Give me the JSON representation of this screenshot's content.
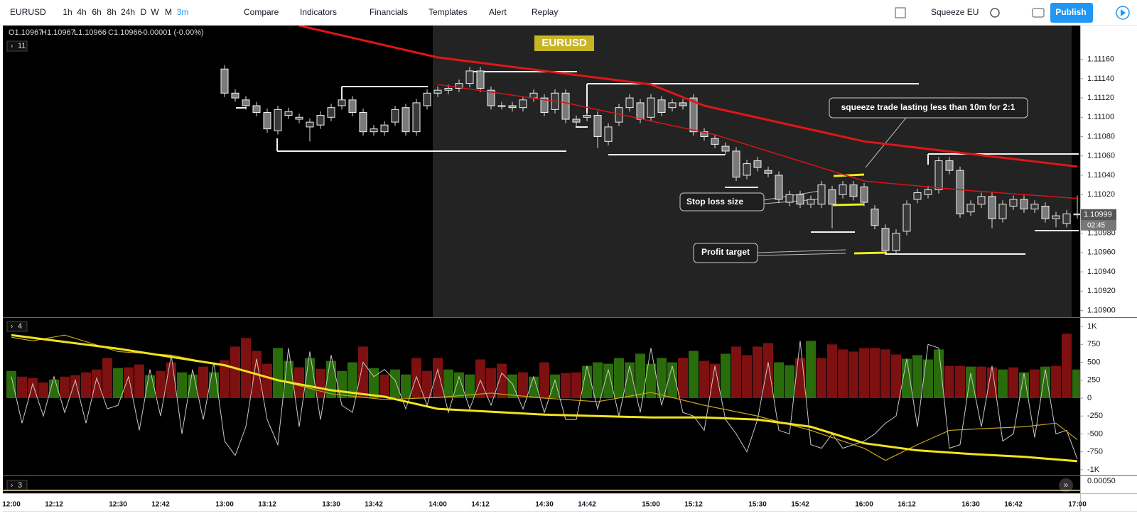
{
  "toolbar": {
    "symbol": "EURUSD",
    "intervals": [
      "1h",
      "4h",
      "6h",
      "8h",
      "24h",
      "D",
      "W",
      "M",
      "3m"
    ],
    "buttons": [
      "Compare",
      "Indicators",
      "Financials",
      "Templates",
      "Alert",
      "Replay"
    ],
    "layout": "Squeeze EU",
    "publish": "Publish"
  },
  "legend": {
    "ohlc": [
      "O1.10967",
      "H1.10967",
      "L1.10966",
      "C1.10966",
      "-0.00001 (-0.00%)"
    ]
  },
  "main_pane": {
    "label": "11",
    "symbol_tag": "EURUSD",
    "annotations": [
      "squeeze trade lasting less than 10m for 2:1",
      "Stop loss size",
      "Profit target"
    ],
    "ylim": [
      1.10893,
      1.11195
    ],
    "yticks": [
      {
        "value": 1.1116,
        "label": "1.11160"
      },
      {
        "value": 1.1114,
        "label": "1.11140"
      },
      {
        "value": 1.1112,
        "label": "1.11120"
      },
      {
        "value": 1.111,
        "label": "1.11100"
      },
      {
        "value": 1.1108,
        "label": "1.11080"
      },
      {
        "value": 1.1106,
        "label": "1.11060"
      },
      {
        "value": 1.1104,
        "label": "1.11040"
      },
      {
        "value": 1.1102,
        "label": "1.11020"
      },
      {
        "value": 1.11,
        "label": "1.11000"
      },
      {
        "value": 1.1098,
        "label": "1.10980"
      },
      {
        "value": 1.1096,
        "label": "1.10960"
      },
      {
        "value": 1.1094,
        "label": "1.10940"
      },
      {
        "value": 1.1092,
        "label": "1.10920"
      },
      {
        "value": 1.109,
        "label": "1.10900"
      }
    ],
    "candles": {
      "up_color": "#f0f0f0",
      "down_color": "#7a7a7a",
      "open": [
        1.1115,
        1.11125,
        1.11118,
        1.11112,
        1.11105,
        1.11086,
        1.11102,
        1.11098,
        1.1109,
        1.11092,
        1.111,
        1.11112,
        1.11118,
        1.11105,
        1.11085,
        1.11085,
        1.11095,
        1.1111,
        1.11085,
        1.11112,
        1.11125,
        1.11128,
        1.1113,
        1.11135,
        1.11148,
        1.11128,
        1.11112,
        1.11112,
        1.1111,
        1.1112,
        1.1112,
        1.11108,
        1.11125,
        1.11098,
        1.111,
        1.11102,
        1.11075,
        1.11095,
        1.1111,
        1.11115,
        1.111,
        1.11118,
        1.1111,
        1.11115,
        1.1112,
        1.11085,
        1.11078,
        1.1107,
        1.11065,
        1.1104,
        1.11055,
        1.11045,
        1.1104,
        1.11012,
        1.1102,
        1.1101,
        1.1101,
        1.11025,
        1.1102,
        1.1103,
        1.11028,
        1.11005,
        1.10985,
        1.10962,
        1.10982,
        1.11015,
        1.1102,
        1.11025,
        1.11055,
        1.11045,
        1.11002,
        1.1101,
        1.11018,
        1.10995,
        1.11008,
        1.11015,
        1.11005,
        1.11008,
        1.10995,
        1.1099,
        1.11
      ],
      "high": [
        1.11154,
        1.11129,
        1.11122,
        1.11116,
        1.11109,
        1.11112,
        1.1111,
        1.11104,
        1.11099,
        1.11106,
        1.11114,
        1.11132,
        1.11122,
        1.11109,
        1.11092,
        1.11096,
        1.11112,
        1.11114,
        1.11119,
        1.11129,
        1.11132,
        1.11134,
        1.11139,
        1.11152,
        1.11152,
        1.11132,
        1.11116,
        1.11116,
        1.11122,
        1.11129,
        1.11124,
        1.11129,
        1.11129,
        1.11102,
        1.11106,
        1.11106,
        1.11094,
        1.11114,
        1.11124,
        1.11119,
        1.11124,
        1.11122,
        1.11119,
        1.11119,
        1.11124,
        1.11089,
        1.11082,
        1.11074,
        1.11069,
        1.11056,
        1.11059,
        1.11049,
        1.11044,
        1.11024,
        1.11024,
        1.11019,
        1.11034,
        1.11029,
        1.11034,
        1.11034,
        1.11032,
        1.11009,
        1.10989,
        1.10984,
        1.11014,
        1.11026,
        1.11029,
        1.11059,
        1.11059,
        1.11049,
        1.11014,
        1.11022,
        1.11022,
        1.11014,
        1.11019,
        1.11019,
        1.11014,
        1.11012,
        1.11002,
        1.11004,
        1.11019
      ],
      "low": [
        1.11121,
        1.11116,
        1.11108,
        1.11101,
        1.11084,
        1.11082,
        1.11098,
        1.11094,
        1.11075,
        1.11088,
        1.11096,
        1.11108,
        1.11101,
        1.11081,
        1.11081,
        1.11081,
        1.11091,
        1.11081,
        1.11081,
        1.11108,
        1.11121,
        1.11124,
        1.11126,
        1.11131,
        1.11126,
        1.11108,
        1.11108,
        1.11106,
        1.11106,
        1.11116,
        1.11101,
        1.11104,
        1.11094,
        1.11091,
        1.11096,
        1.11068,
        1.11071,
        1.11091,
        1.11106,
        1.11094,
        1.11096,
        1.11101,
        1.11106,
        1.11108,
        1.11081,
        1.11076,
        1.11068,
        1.11061,
        1.11034,
        1.11036,
        1.11044,
        1.11038,
        1.11011,
        1.11008,
        1.11006,
        1.11006,
        1.11006,
        1.10985,
        1.11016,
        1.11014,
        1.11008,
        1.10984,
        1.10958,
        1.10958,
        1.10978,
        1.11011,
        1.11016,
        1.11021,
        1.11041,
        1.10996,
        1.10998,
        1.11006,
        1.10985,
        1.10991,
        1.11004,
        1.11001,
        1.11001,
        1.10991,
        1.10986,
        1.10986,
        1.10995
      ],
      "close": [
        1.11125,
        1.1112,
        1.11112,
        1.11105,
        1.11088,
        1.11108,
        1.11106,
        1.111,
        1.11095,
        1.11102,
        1.1111,
        1.11118,
        1.11105,
        1.11085,
        1.11088,
        1.11092,
        1.11108,
        1.11085,
        1.11115,
        1.11125,
        1.11128,
        1.1113,
        1.11135,
        1.11148,
        1.1113,
        1.11112,
        1.11112,
        1.1111,
        1.11118,
        1.11125,
        1.11105,
        1.11125,
        1.11098,
        1.11095,
        1.11102,
        1.1108,
        1.1109,
        1.1111,
        1.1112,
        1.11098,
        1.1112,
        1.11105,
        1.11115,
        1.11112,
        1.11085,
        1.1108,
        1.11072,
        1.11065,
        1.11038,
        1.11052,
        1.11048,
        1.11042,
        1.11015,
        1.1102,
        1.1101,
        1.11015,
        1.1103,
        1.1101,
        1.1103,
        1.11018,
        1.11012,
        1.10988,
        1.10962,
        1.1098,
        1.1101,
        1.11022,
        1.11025,
        1.11055,
        1.11045,
        1.11,
        1.1101,
        1.11018,
        1.10995,
        1.1101,
        1.11015,
        1.11005,
        1.1101,
        1.10995,
        1.10998,
        1.11,
        1.10999
      ]
    },
    "ma_slow": {
      "color": "#e01616",
      "x": [
        27,
        40,
        50,
        60,
        65,
        80,
        90,
        100
      ],
      "values": [
        1.11195,
        1.11162,
        1.11148,
        1.11134,
        1.11112,
        1.11075,
        1.11062,
        1.11049
      ]
    },
    "ma_fast": {
      "color": "#d81414",
      "x": [
        40,
        52,
        66,
        80,
        90,
        100
      ],
      "values": [
        1.11134,
        1.11115,
        1.11082,
        1.11034,
        1.11024,
        1.11016
      ]
    },
    "last_price": 1.10999,
    "countdown": "02:45"
  },
  "oscillator_pane": {
    "label": "4",
    "ylim": [
      -1080,
      1120
    ],
    "yticks": [
      {
        "value": 1000,
        "label": "1K"
      },
      750,
      500,
      250,
      0,
      -250,
      -500,
      -750,
      {
        "value": -1000,
        "label": "-1K"
      }
    ],
    "histogram": {
      "values": [
        380,
        300,
        280,
        220,
        260,
        300,
        320,
        360,
        400,
        560,
        420,
        430,
        470,
        320,
        380,
        500,
        360,
        330,
        440,
        360,
        530,
        720,
        840,
        660,
        480,
        700,
        520,
        430,
        560,
        410,
        520,
        380,
        500,
        720,
        420,
        330,
        400,
        330,
        560,
        380,
        560,
        400,
        360,
        330,
        540,
        420,
        480,
        330,
        360,
        300,
        500,
        330,
        350,
        360,
        450,
        500,
        480,
        560,
        500,
        620,
        480,
        560,
        500,
        560,
        660,
        520,
        480,
        620,
        720,
        600,
        720,
        770,
        500,
        460,
        560,
        800,
        560,
        750,
        680,
        650,
        700,
        700,
        680,
        610,
        550,
        600,
        540,
        680,
        450,
        450,
        440,
        440,
        430,
        400,
        430,
        360,
        400,
        440,
        450,
        900,
        400
      ],
      "colors": [
        "#2a6b0c",
        "#7d1010",
        "#7d1010",
        "#7d1010",
        "#2a6b0c",
        "#7d1010",
        "#7d1010",
        "#7d1010",
        "#7d1010",
        "#7d1010",
        "#2a6b0c",
        "#7d1010",
        "#7d1010",
        "#2a6b0c",
        "#7d1010",
        "#7d1010",
        "#2a6b0c",
        "#2a6b0c",
        "#7d1010",
        "#2a6b0c",
        "#7d1010",
        "#7d1010",
        "#7d1010",
        "#7d1010",
        "#7d1010",
        "#2a6b0c",
        "#2a6b0c",
        "#7d1010",
        "#2a6b0c",
        "#7d1010",
        "#2a6b0c",
        "#2a6b0c",
        "#2a6b0c",
        "#7d1010",
        "#2a6b0c",
        "#7d1010",
        "#2a6b0c",
        "#2a6b0c",
        "#7d1010",
        "#7d1010",
        "#7d1010",
        "#2a6b0c",
        "#2a6b0c",
        "#2a6b0c",
        "#7d1010",
        "#7d1010",
        "#7d1010",
        "#2a6b0c",
        "#7d1010",
        "#2a6b0c",
        "#7d1010",
        "#2a6b0c",
        "#7d1010",
        "#7d1010",
        "#2a6b0c",
        "#2a6b0c",
        "#2a6b0c",
        "#2a6b0c",
        "#2a6b0c",
        "#2a6b0c",
        "#2a6b0c",
        "#2a6b0c",
        "#2a6b0c",
        "#7d1010",
        "#2a6b0c",
        "#7d1010",
        "#7d1010",
        "#2a6b0c",
        "#7d1010",
        "#7d1010",
        "#7d1010",
        "#7d1010",
        "#2a6b0c",
        "#2a6b0c",
        "#7d1010",
        "#2a6b0c",
        "#7d1010",
        "#7d1010",
        "#7d1010",
        "#7d1010",
        "#7d1010",
        "#7d1010",
        "#7d1010",
        "#7d1010",
        "#2a6b0c",
        "#2a6b0c",
        "#2a6b0c",
        "#2a6b0c",
        "#7d1010",
        "#7d1010",
        "#2a6b0c",
        "#7d1010",
        "#7d1010",
        "#2a6b0c",
        "#7d1010",
        "#2a6b0c",
        "#7d1010",
        "#2a6b0c",
        "#7d1010",
        "#7d1010",
        "#2a6b0c"
      ]
    },
    "signal": {
      "color": "#c8c8c8",
      "values": [
        300,
        -350,
        200,
        -250,
        300,
        -200,
        250,
        -350,
        280,
        -150,
        -100,
        300,
        -450,
        400,
        -250,
        600,
        -500,
        400,
        -300,
        500,
        -600,
        -800,
        -400,
        550,
        -300,
        -650,
        700,
        -400,
        650,
        -300,
        600,
        -100,
        -200,
        500,
        300,
        400,
        250,
        -150,
        300,
        -100,
        400,
        -200,
        300,
        -150,
        250,
        -100,
        350,
        200,
        -150,
        300,
        -200,
        250,
        -300,
        -300,
        450,
        -150,
        400,
        -250,
        450,
        -200,
        700,
        -100,
        450,
        -200,
        -250,
        -450,
        450,
        -300,
        -500,
        -750,
        -300,
        500,
        -450,
        -500,
        800,
        -650,
        -700,
        -500,
        -700,
        -650,
        -600,
        -500,
        -350,
        -250,
        550,
        -400,
        750,
        700,
        -700,
        -650,
        350,
        -400,
        450,
        -600,
        -500,
        350,
        -550,
        400,
        -500,
        -450,
        -850
      ]
    },
    "trend": {
      "color": "#f2e31d",
      "x": [
        0,
        10,
        20,
        25,
        30,
        35,
        40,
        50,
        60,
        65,
        70,
        75,
        80,
        85,
        90,
        95,
        100
      ],
      "values": [
        880,
        690,
        460,
        250,
        110,
        20,
        -150,
        -230,
        -270,
        -270,
        -300,
        -400,
        -630,
        -730,
        -780,
        -820,
        -880
      ]
    },
    "smooth": {
      "color": "#c9a61a",
      "x": [
        0,
        2,
        5,
        10,
        15,
        20,
        25,
        30,
        35,
        40,
        45,
        50,
        55,
        60,
        65,
        70,
        75,
        80,
        82,
        85,
        88,
        92,
        95,
        98,
        100
      ],
      "values": [
        850,
        800,
        880,
        650,
        600,
        450,
        250,
        60,
        -20,
        10,
        70,
        0,
        -50,
        80,
        -100,
        -250,
        -450,
        -700,
        -870,
        -650,
        -450,
        -420,
        -400,
        -350,
        -580
      ]
    }
  },
  "third_pane": {
    "label": "3",
    "yticks": [
      {
        "value": 0.0005,
        "label": "0.00050"
      }
    ]
  },
  "time_axis": {
    "ticks": [
      "12:00",
      "12:12",
      "12:30",
      "12:42",
      "13:00",
      "13:12",
      "13:30",
      "13:42",
      "14:00",
      "14:12",
      "14:30",
      "14:42",
      "15:00",
      "15:12",
      "15:30",
      "15:42",
      "16:00",
      "16:12",
      "16:30",
      "16:42",
      "17:00"
    ]
  }
}
